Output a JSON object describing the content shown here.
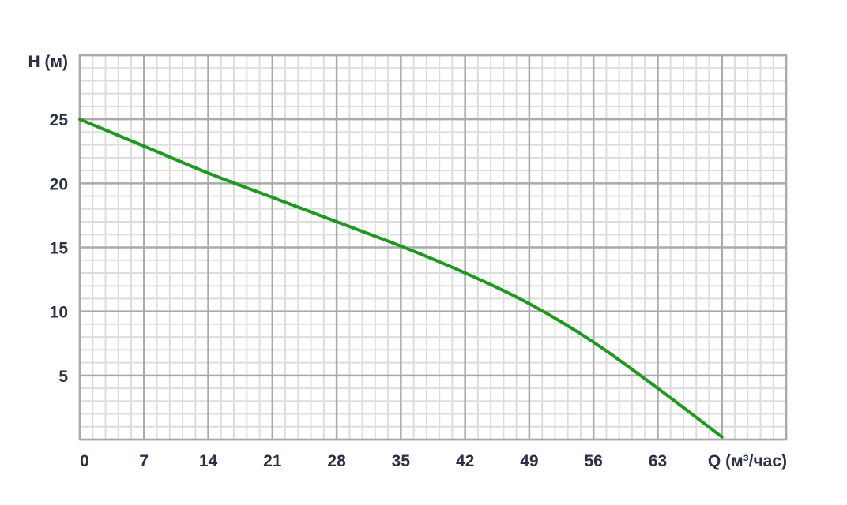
{
  "chart_data": {
    "type": "line",
    "title": "",
    "xlabel": "Q (м³/час)",
    "ylabel": "H (м)",
    "xlim": [
      0,
      77
    ],
    "ylim": [
      0,
      30
    ],
    "x_ticks": [
      0,
      7,
      14,
      21,
      28,
      35,
      42,
      49,
      56,
      63
    ],
    "y_ticks": [
      5,
      10,
      15,
      20,
      25
    ],
    "x_minor_per_major": 5,
    "y_minor_per_major": 5,
    "grid": true,
    "series": [
      {
        "x": [
          0,
          7,
          14,
          21,
          28,
          35,
          42,
          49,
          56,
          63,
          70
        ],
        "y": [
          25,
          22.9,
          20.8,
          18.9,
          17.0,
          15.1,
          13.0,
          10.6,
          7.6,
          4.0,
          0.2
        ]
      }
    ],
    "colors": {
      "curve": "#1c9a1c",
      "major_grid": "#aaaaaa",
      "minor_grid": "#dddddd",
      "text": "#2a3142"
    }
  }
}
